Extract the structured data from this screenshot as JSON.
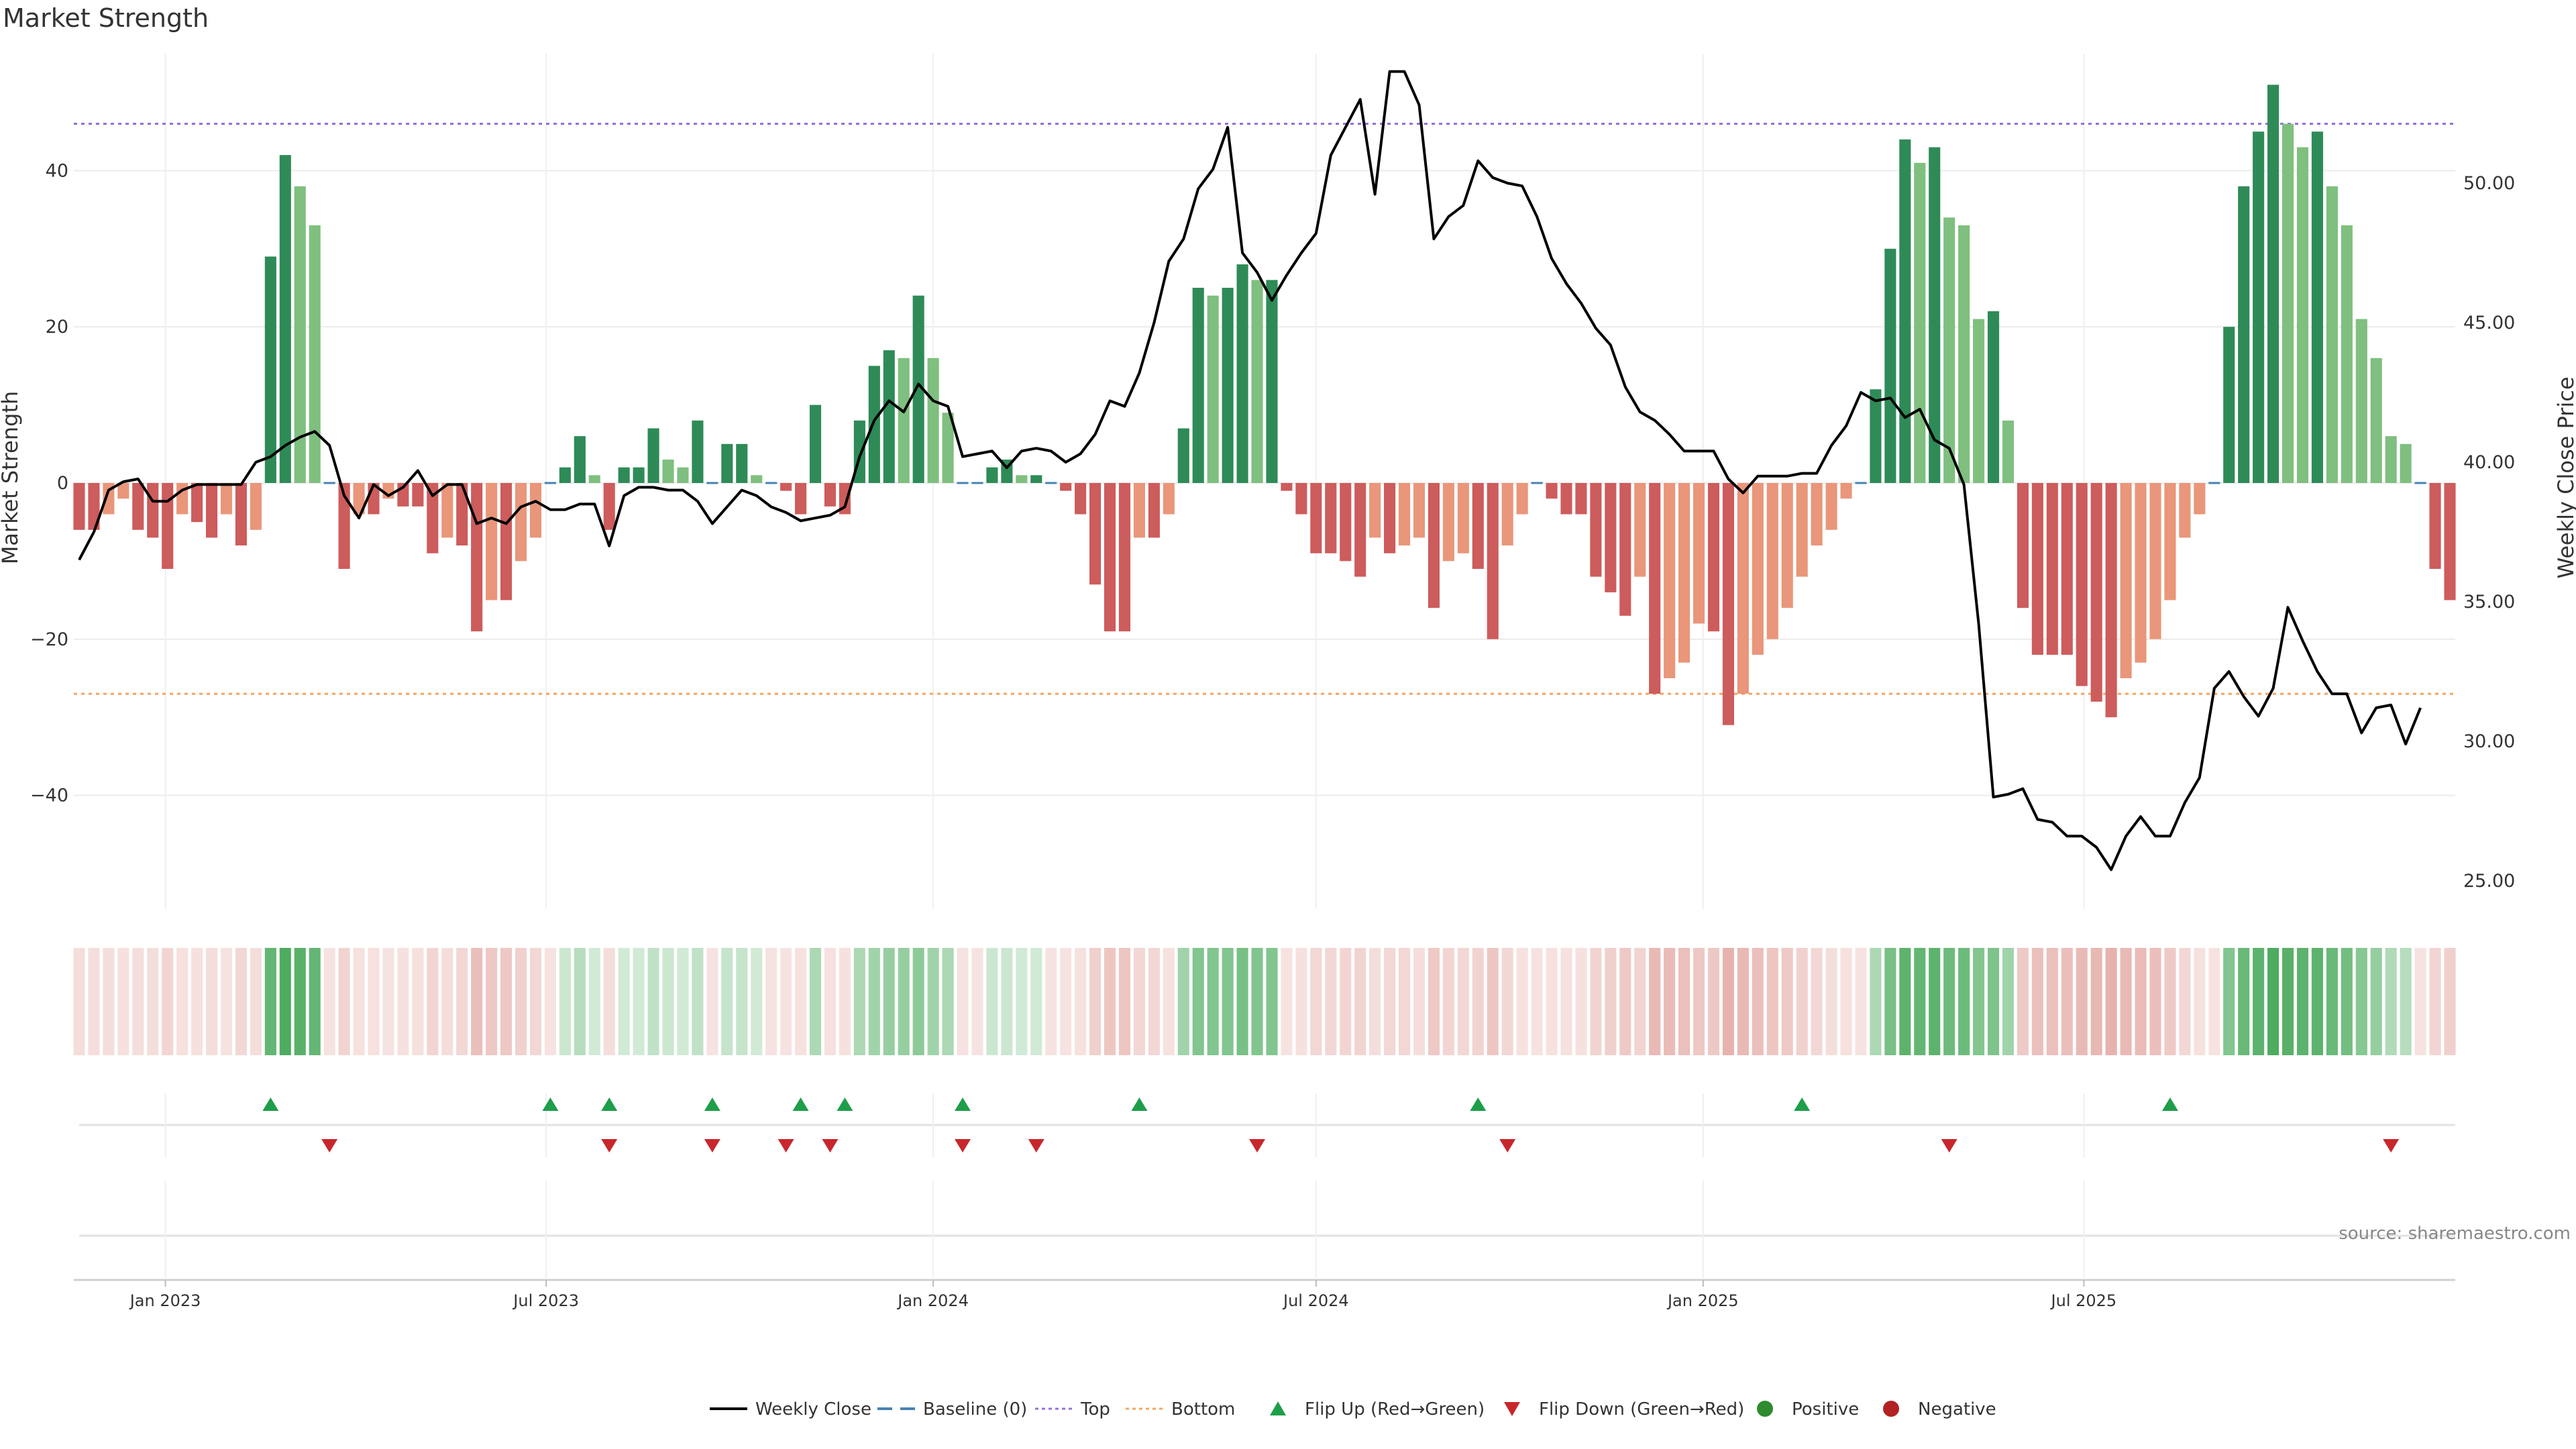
{
  "chart_data": {
    "type": "bar",
    "title": "Market Strength",
    "ylabel_left": "Market Strength",
    "ylabel_right": "Weekly Close Price",
    "source": "source: sharemaestro.com",
    "x_start": "2022-11-21",
    "x_step_days": 7,
    "x_ticks": [
      {
        "label": "Jan 2023",
        "date": "2023-01-01"
      },
      {
        "label": "Jul 2023",
        "date": "2023-07-01"
      },
      {
        "label": "Jan 2024",
        "date": "2024-01-01"
      },
      {
        "label": "Jul 2024",
        "date": "2024-07-01"
      },
      {
        "label": "Jan 2025",
        "date": "2025-01-01"
      },
      {
        "label": "Jul 2025",
        "date": "2025-07-01"
      }
    ],
    "y_left_ticks": [
      40,
      20,
      0,
      -20,
      -40
    ],
    "y_left_range": [
      -55,
      55
    ],
    "y_right_ticks": [
      "50.00",
      "45.00",
      "40.00",
      "35.00",
      "30.00",
      "25.00"
    ],
    "y_right_range": [
      24.5,
      55
    ],
    "top_level": 46,
    "bottom_level": -27,
    "colors": {
      "strong_green": "#2e8b57",
      "light_green": "#7fbf7f",
      "strong_red": "#cd5c5c",
      "light_red": "#e9967a",
      "price_line": "#000000",
      "top_line": "#9370db",
      "bottom_line": "#f4a460",
      "baseline": "#4682b4",
      "flip_up": "#1e9e4a",
      "flip_down": "#c8262c",
      "positive": "#2e8b2e",
      "negative": "#b22222"
    },
    "strength": [
      -6,
      -6,
      -4,
      -2,
      -6,
      -7,
      -11,
      -4,
      -5,
      -7,
      -4,
      -8,
      -6,
      29,
      42,
      38,
      33,
      0,
      -11,
      -4,
      -4,
      -2,
      -3,
      -3,
      -9,
      -7,
      -8,
      -19,
      -15,
      -15,
      -10,
      -7,
      0,
      2,
      6,
      1,
      -6,
      2,
      2,
      7,
      3,
      2,
      8,
      0,
      5,
      5,
      1,
      0,
      -1,
      -4,
      10,
      -3,
      -4,
      8,
      15,
      17,
      16,
      24,
      16,
      9,
      0,
      0,
      2,
      3,
      1,
      1,
      0,
      -1,
      -4,
      -13,
      -19,
      -19,
      -7,
      -7,
      -4,
      7,
      25,
      24,
      25,
      28,
      26,
      26,
      -1,
      -4,
      -9,
      -9,
      -10,
      -12,
      -7,
      -9,
      -8,
      -7,
      -16,
      -10,
      -9,
      -11,
      -20,
      -8,
      -4,
      0,
      -2,
      -4,
      -4,
      -12,
      -14,
      -17,
      -12,
      -27,
      -25,
      -23,
      -18,
      -19,
      -31,
      -27,
      -22,
      -20,
      -16,
      -12,
      -8,
      -6,
      -2,
      0,
      12,
      30,
      44,
      41,
      43,
      34,
      33,
      21,
      22,
      8,
      -16,
      -22,
      -22,
      -22,
      -26,
      -28,
      -30,
      -25,
      -23,
      -20,
      -15,
      -7,
      -4,
      0,
      20,
      38,
      45,
      51,
      46,
      43,
      45,
      38,
      33,
      21,
      16,
      6,
      5,
      0,
      -11,
      -15
    ],
    "price": [
      36.5,
      37.5,
      39.0,
      39.3,
      39.4,
      38.6,
      38.6,
      39.0,
      39.2,
      39.2,
      39.2,
      39.2,
      40.0,
      40.2,
      40.6,
      40.9,
      41.1,
      40.6,
      38.8,
      38.0,
      39.2,
      38.8,
      39.1,
      39.7,
      38.8,
      39.2,
      39.2,
      37.8,
      38.0,
      37.8,
      38.4,
      38.6,
      38.3,
      38.3,
      38.5,
      38.5,
      37.0,
      38.8,
      39.1,
      39.1,
      39.0,
      39.0,
      38.6,
      37.8,
      38.4,
      39.0,
      38.8,
      38.4,
      38.2,
      37.9,
      38.0,
      38.1,
      38.4,
      40.2,
      41.5,
      42.2,
      41.8,
      42.8,
      42.2,
      42.0,
      40.2,
      40.3,
      40.4,
      39.8,
      40.4,
      40.5,
      40.4,
      40.0,
      40.3,
      41.0,
      42.2,
      42.0,
      43.2,
      45.0,
      47.2,
      48.0,
      49.8,
      50.5,
      52.0,
      47.5,
      46.8,
      45.8,
      46.7,
      47.5,
      48.2,
      51.0,
      52.0,
      53.0,
      49.6,
      54.0,
      54.0,
      52.8,
      48.0,
      48.8,
      49.2,
      50.8,
      50.2,
      50.0,
      49.9,
      48.8,
      47.3,
      46.4,
      45.7,
      44.8,
      44.2,
      42.7,
      41.8,
      41.5,
      41.0,
      40.4,
      40.4,
      40.4,
      39.4,
      38.9,
      39.5,
      39.5,
      39.5,
      39.6,
      39.6,
      40.6,
      41.3,
      42.5,
      42.2,
      42.3,
      41.6,
      41.9,
      40.8,
      40.5,
      39.2,
      34.2,
      28.0,
      28.1,
      28.3,
      27.2,
      27.1,
      26.6,
      26.6,
      26.2,
      25.4,
      26.6,
      27.3,
      26.6,
      26.6,
      27.8,
      28.7,
      31.9,
      32.5,
      31.6,
      30.9,
      31.9,
      34.8,
      33.6,
      32.5,
      31.7,
      31.7,
      30.3,
      31.2,
      31.3,
      29.9,
      31.2
    ]
  },
  "heat_strip": {
    "intensity": [
      0.25,
      0.25,
      0.25,
      0.22,
      0.25,
      0.25,
      0.3,
      0.22,
      0.22,
      0.25,
      0.2,
      0.28,
      0.25,
      0.75,
      0.85,
      0.8,
      0.75,
      0.2,
      0.32,
      0.22,
      0.22,
      0.2,
      0.22,
      0.22,
      0.3,
      0.25,
      0.28,
      0.45,
      0.4,
      0.4,
      0.33,
      0.28,
      0.2,
      0.25,
      0.35,
      0.22,
      0.25,
      0.22,
      0.22,
      0.3,
      0.25,
      0.22,
      0.3,
      0.2,
      0.28,
      0.28,
      0.22,
      0.2,
      0.2,
      0.22,
      0.4,
      0.22,
      0.22,
      0.4,
      0.45,
      0.5,
      0.5,
      0.55,
      0.45,
      0.4,
      0.2,
      0.2,
      0.25,
      0.25,
      0.22,
      0.22,
      0.2,
      0.2,
      0.22,
      0.35,
      0.42,
      0.42,
      0.28,
      0.28,
      0.22,
      0.45,
      0.6,
      0.6,
      0.6,
      0.65,
      0.6,
      0.6,
      0.2,
      0.22,
      0.28,
      0.28,
      0.3,
      0.32,
      0.25,
      0.28,
      0.28,
      0.25,
      0.38,
      0.3,
      0.28,
      0.32,
      0.42,
      0.28,
      0.22,
      0.2,
      0.22,
      0.22,
      0.22,
      0.32,
      0.35,
      0.38,
      0.32,
      0.5,
      0.48,
      0.45,
      0.4,
      0.4,
      0.55,
      0.5,
      0.45,
      0.42,
      0.38,
      0.33,
      0.28,
      0.25,
      0.22,
      0.2,
      0.4,
      0.65,
      0.78,
      0.75,
      0.78,
      0.7,
      0.7,
      0.6,
      0.62,
      0.45,
      0.38,
      0.45,
      0.45,
      0.45,
      0.5,
      0.52,
      0.55,
      0.5,
      0.48,
      0.45,
      0.38,
      0.28,
      0.22,
      0.2,
      0.6,
      0.72,
      0.78,
      0.85,
      0.8,
      0.78,
      0.78,
      0.72,
      0.68,
      0.58,
      0.5,
      0.38,
      0.35,
      0.2,
      0.3,
      0.35
    ]
  },
  "flips": {
    "up": [
      13,
      32,
      36,
      43,
      49,
      52,
      60,
      72,
      95,
      117,
      142
    ],
    "down": [
      17,
      36,
      43,
      48,
      51,
      60,
      65,
      80,
      97,
      127,
      157
    ]
  },
  "legend": [
    {
      "label": "Weekly Close",
      "kind": "line",
      "color": "#000000"
    },
    {
      "label": "Baseline (0)",
      "kind": "dash",
      "color": "#4682b4"
    },
    {
      "label": "Top",
      "kind": "dot",
      "color": "#9370db"
    },
    {
      "label": "Bottom",
      "kind": "dot",
      "color": "#f4a460"
    },
    {
      "label": "Flip Up (Red→Green)",
      "kind": "tri-up",
      "color": "#1e9e4a"
    },
    {
      "label": "Flip Down (Green→Red)",
      "kind": "tri-down",
      "color": "#c8262c"
    },
    {
      "label": "Positive",
      "kind": "circle",
      "color": "#2e8b2e"
    },
    {
      "label": "Negative",
      "kind": "circle",
      "color": "#b22222"
    }
  ]
}
